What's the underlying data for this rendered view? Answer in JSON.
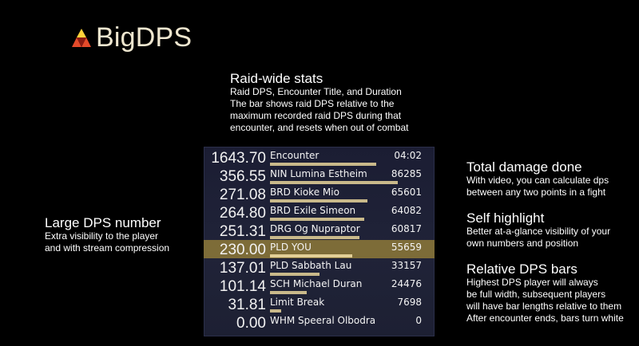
{
  "logo": {
    "text": "BigDPS",
    "icon": "triforce-logo-icon"
  },
  "notes": {
    "raid": {
      "heading": "Raid-wide stats",
      "desc": "Raid DPS, Encounter Title, and Duration\nThe bar shows raid DPS relative to the\nmaximum recorded raid DPS during that\nencounter, and resets when out of combat"
    },
    "dps": {
      "heading": "Large DPS number",
      "desc": "Extra visibility to the player\nand with stream compression"
    },
    "damage": {
      "heading": "Total damage done",
      "desc": "With video, you can calculate dps\nbetween any two points in a fight"
    },
    "self": {
      "heading": "Self highlight",
      "desc": "Better at-a-glance visibility of your\nown numbers and position"
    },
    "bars": {
      "heading": "Relative DPS bars",
      "desc": "Highest DPS player will always\nbe full width, subsequent players\nwill have bar lengths relative to them\nAfter encounter ends, bars turn white"
    }
  },
  "meter": {
    "rows": [
      {
        "dps": "1643.70",
        "name": "Encounter",
        "value": "04:02",
        "bar": 0.83,
        "highlight": false
      },
      {
        "dps": "356.55",
        "name": "NIN Lumina Estheim",
        "value": "86285",
        "bar": 1.0,
        "highlight": false
      },
      {
        "dps": "271.08",
        "name": "BRD Kioke Mio",
        "value": "65601",
        "bar": 0.76,
        "highlight": false
      },
      {
        "dps": "264.80",
        "name": "BRD Exile Simeon",
        "value": "64082",
        "bar": 0.74,
        "highlight": false
      },
      {
        "dps": "251.31",
        "name": "DRG Og Nupraptor",
        "value": "60817",
        "bar": 0.7,
        "highlight": false
      },
      {
        "dps": "230.00",
        "name": "PLD YOU",
        "value": "55659",
        "bar": 0.645,
        "highlight": true
      },
      {
        "dps": "137.01",
        "name": "PLD Sabbath Lau",
        "value": "33157",
        "bar": 0.385,
        "highlight": false
      },
      {
        "dps": "101.14",
        "name": "SCH Michael Duran",
        "value": "24476",
        "bar": 0.285,
        "highlight": false
      },
      {
        "dps": "31.81",
        "name": "Limit Break",
        "value": "7698",
        "bar": 0.09,
        "highlight": false
      },
      {
        "dps": "0.00",
        "name": "WHM Speeral Olbodra",
        "value": "0",
        "bar": 0.0,
        "highlight": false
      }
    ]
  }
}
